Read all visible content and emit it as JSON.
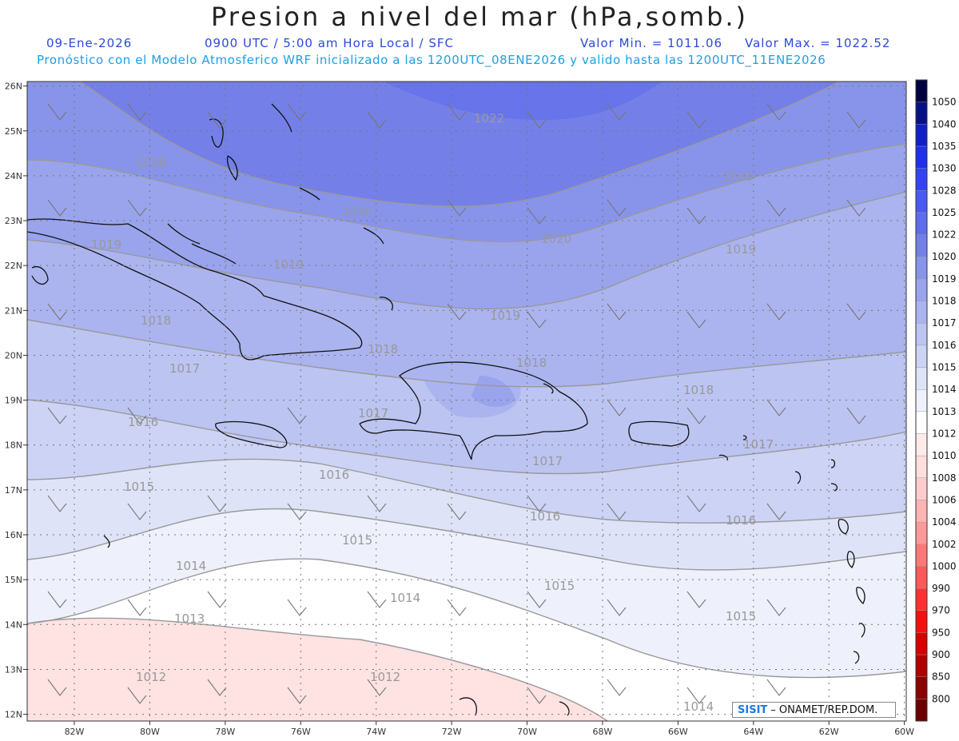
{
  "header": {
    "title": "Presion a nivel del mar (hPa,somb.)",
    "date": "09-Ene-2026",
    "time": "0900 UTC / 5:00 am Hora Local / SFC",
    "min_label": "Valor Min. = 1011.06",
    "max_label": "Valor Max. = 1022.52",
    "model_info": "Pronóstico con el Modelo Atmosferico WRF inicializado a las 1200UTC_08ENE2026 y valido hasta las  1200UTC_11ENE2026"
  },
  "map": {
    "lon_labels": [
      "82W",
      "80W",
      "78W",
      "76W",
      "74W",
      "72W",
      "70W",
      "68W",
      "66W",
      "64W",
      "62W",
      "60W"
    ],
    "lat_labels": [
      "12N",
      "13N",
      "14N",
      "15N",
      "16N",
      "17N",
      "18N",
      "19N",
      "20N",
      "21N",
      "22N",
      "23N",
      "24N",
      "25N",
      "26N"
    ],
    "min_value": 1011.06,
    "max_value": 1022.52,
    "contour_labels": [
      "1012",
      "1013",
      "1014",
      "1015",
      "1016",
      "1017",
      "1018",
      "1019",
      "1020",
      "1022"
    ]
  },
  "colorbar": {
    "levels": [
      "800",
      "850",
      "900",
      "950",
      "970",
      "990",
      "1000",
      "1002",
      "1004",
      "1006",
      "1008",
      "1010",
      "1012",
      "1013",
      "1014",
      "1015",
      "1016",
      "1017",
      "1018",
      "1019",
      "1020",
      "1022",
      "1025",
      "1028",
      "1030",
      "1035",
      "1040",
      "1050"
    ],
    "colors": [
      "#6e0000",
      "#8c0000",
      "#b00000",
      "#d60000",
      "#f21010",
      "#ff3030",
      "#ff5858",
      "#ff7878",
      "#ff9898",
      "#ffb4b4",
      "#ffcccc",
      "#ffdede",
      "#ffeaea",
      "#ffffff",
      "#eef0fb",
      "#dfe3f8",
      "#cdd3f5",
      "#bcc4f2",
      "#abb4ef",
      "#99a4ec",
      "#8894ea",
      "#7480e8",
      "#5f6cf0",
      "#4a58f4",
      "#3444f4",
      "#1f30ea",
      "#1020c8",
      "#081088",
      "#000040"
    ]
  },
  "credit": {
    "logo": "SISIT",
    "text": "ONAMET/REP.DOM."
  }
}
